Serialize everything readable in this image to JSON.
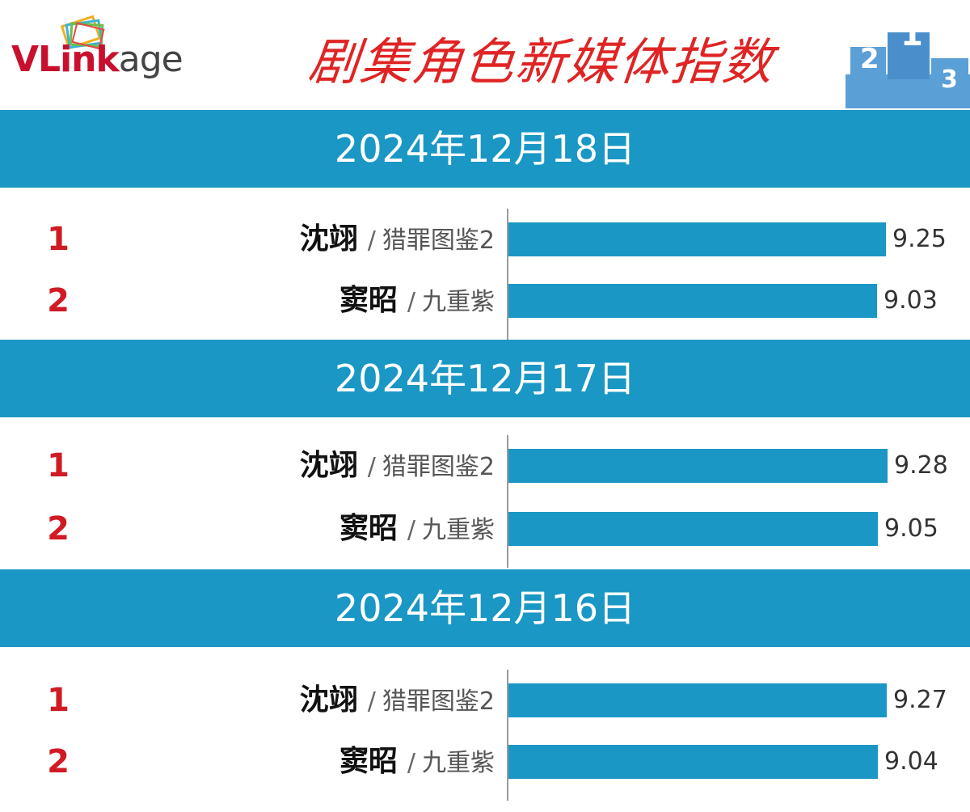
{
  "header": {
    "logo_part1": "VLink",
    "logo_part2": "age",
    "title": "剧集角色新媒体指数"
  },
  "colors": {
    "band": "#1a97c4",
    "bar": "#1a97c4",
    "rank": "#d11b24",
    "title": "#e02424"
  },
  "chart_data": [
    {
      "type": "bar",
      "orientation": "horizontal",
      "date": "2024年12月18日",
      "categories": [
        "沈翊 / 猎罪图鉴2",
        "窦昭 / 九重紫"
      ],
      "rows": [
        {
          "rank": "1",
          "name": "沈翊",
          "show": "猎罪图鉴2",
          "value": 9.25
        },
        {
          "rank": "2",
          "name": "窦昭",
          "show": "九重紫",
          "value": 9.03
        }
      ]
    },
    {
      "type": "bar",
      "orientation": "horizontal",
      "date": "2024年12月17日",
      "categories": [
        "沈翊 / 猎罪图鉴2",
        "窦昭 / 九重紫"
      ],
      "rows": [
        {
          "rank": "1",
          "name": "沈翊",
          "show": "猎罪图鉴2",
          "value": 9.28
        },
        {
          "rank": "2",
          "name": "窦昭",
          "show": "九重紫",
          "value": 9.05
        }
      ]
    },
    {
      "type": "bar",
      "orientation": "horizontal",
      "date": "2024年12月16日",
      "categories": [
        "沈翊 / 猎罪图鉴2",
        "窦昭 / 九重紫"
      ],
      "rows": [
        {
          "rank": "1",
          "name": "沈翊",
          "show": "猎罪图鉴2",
          "value": 9.27
        },
        {
          "rank": "2",
          "name": "窦昭",
          "show": "九重紫",
          "value": 9.04
        }
      ]
    }
  ]
}
